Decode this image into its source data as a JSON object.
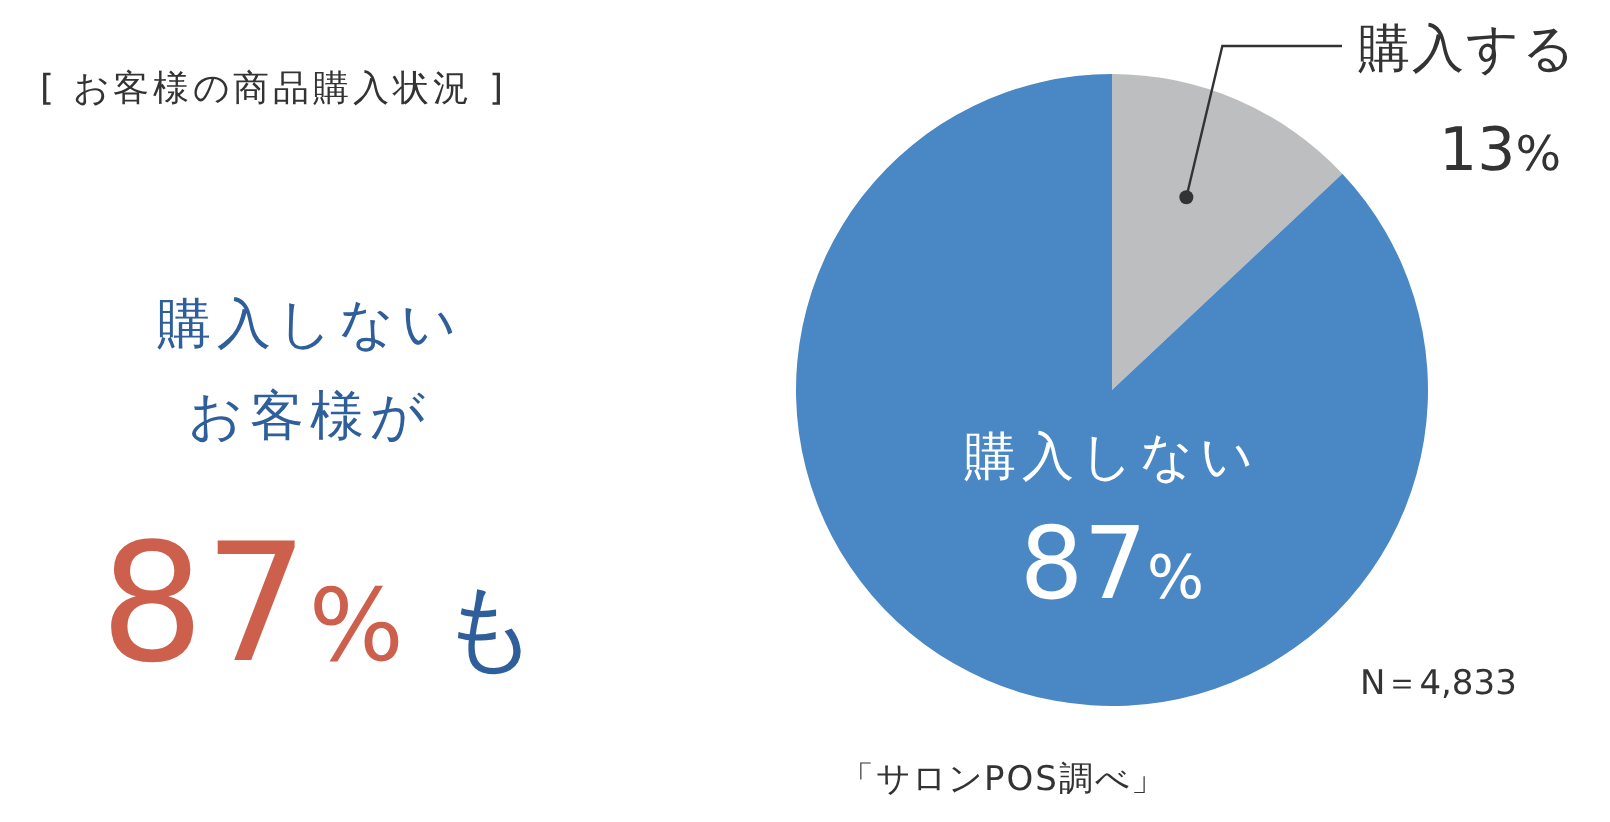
{
  "chart_data": {
    "type": "pie",
    "title": "[ お客様の商品購入状況 ]",
    "categories": [
      "購入する",
      "購入しない"
    ],
    "values": [
      13,
      87
    ],
    "colors": [
      "#bdbebf",
      "#4a87c5"
    ],
    "value_labels": [
      "13%",
      "87%"
    ],
    "annotations": [
      "購入しない",
      "お客様が",
      "87%",
      "も",
      "N＝4,833",
      "「サロンPOS調べ」"
    ]
  }
}
